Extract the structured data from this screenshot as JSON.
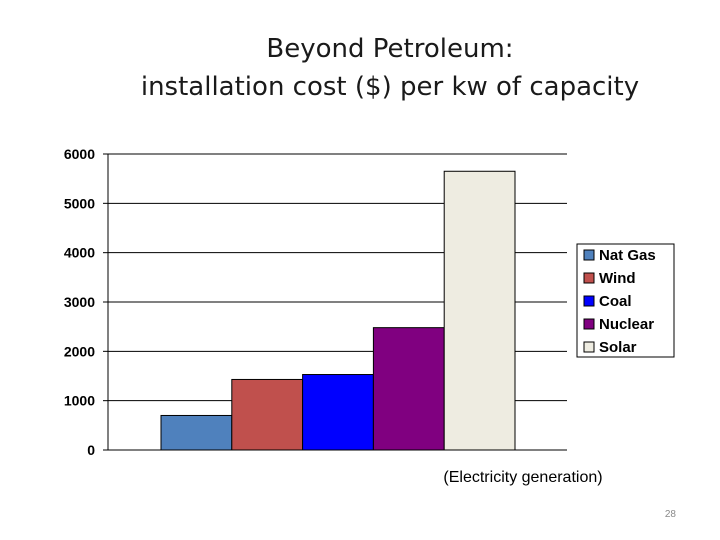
{
  "slide": {
    "title_line1": "Beyond Petroleum:",
    "title_line2": "installation cost ($) per kw of capacity",
    "page_number": "28"
  },
  "chart_data": {
    "type": "bar",
    "categories": [
      "Nat Gas",
      "Wind",
      "Coal",
      "Nuclear",
      "Solar"
    ],
    "values": [
      700,
      1430,
      1530,
      2480,
      5650
    ],
    "colors": [
      "#4f81bd",
      "#c0504d",
      "#0000ff",
      "#800080",
      "#eeece1"
    ],
    "xlabel": "(Electricity generation)",
    "ylim": [
      0,
      6000
    ],
    "yticks": [
      0,
      1000,
      2000,
      3000,
      4000,
      5000,
      6000
    ],
    "grid": true,
    "legend_position": "right"
  }
}
